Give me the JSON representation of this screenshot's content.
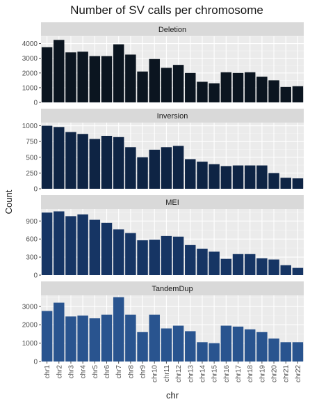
{
  "chart_data": {
    "type": "bar",
    "title": "Number of SV calls per chromosome",
    "xlabel": "chr",
    "ylabel": "Count",
    "grid": true,
    "categories": [
      "chr1",
      "chr2",
      "chr3",
      "chr4",
      "chr5",
      "chr6",
      "chr7",
      "chr8",
      "chr9",
      "chr10",
      "chr11",
      "chr12",
      "chr13",
      "chr14",
      "chr15",
      "chr16",
      "chr17",
      "chr18",
      "chr19",
      "chr20",
      "chr21",
      "chr22"
    ],
    "facets": [
      {
        "name": "Deletion",
        "color": "#0b1520",
        "ylim": [
          0,
          4500
        ],
        "yticks": [
          0,
          1000,
          2000,
          3000,
          4000
        ],
        "values": [
          3750,
          4250,
          3400,
          3450,
          3150,
          3150,
          3950,
          3250,
          2100,
          2950,
          2350,
          2550,
          2000,
          1400,
          1300,
          2050,
          2000,
          2050,
          1750,
          1500,
          1050,
          1100
        ]
      },
      {
        "name": "Inversion",
        "color": "#0e2444",
        "ylim": [
          0,
          1050
        ],
        "yticks": [
          0,
          250,
          500,
          750,
          1000
        ],
        "values": [
          1000,
          980,
          900,
          870,
          790,
          840,
          820,
          660,
          500,
          620,
          660,
          680,
          470,
          430,
          390,
          360,
          370,
          370,
          370,
          250,
          175,
          165
        ]
      },
      {
        "name": "MEI",
        "color": "#163564",
        "ylim": [
          0,
          1100
        ],
        "yticks": [
          0,
          300,
          600,
          900
        ],
        "values": [
          1040,
          1060,
          980,
          1010,
          920,
          870,
          760,
          700,
          580,
          590,
          650,
          640,
          500,
          440,
          390,
          270,
          350,
          350,
          280,
          260,
          165,
          120
        ]
      },
      {
        "name": "TandemDup",
        "color": "#29548f",
        "ylim": [
          0,
          3600
        ],
        "yticks": [
          0,
          1000,
          2000,
          3000
        ],
        "values": [
          2750,
          3200,
          2450,
          2500,
          2350,
          2550,
          3500,
          2550,
          1600,
          2550,
          1800,
          1950,
          1650,
          1050,
          1000,
          1950,
          1900,
          1750,
          1600,
          1250,
          1050,
          1050
        ]
      }
    ]
  }
}
